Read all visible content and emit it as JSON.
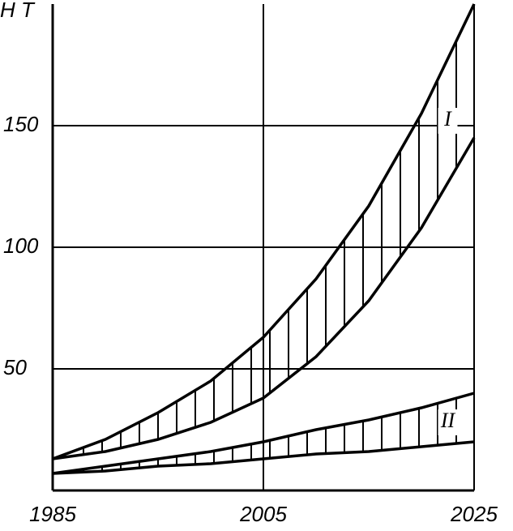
{
  "chart_data": {
    "type": "band",
    "y_label": "Н Т",
    "x": [
      1985,
      1990,
      1995,
      2000,
      2005,
      2010,
      2015,
      2020,
      2025
    ],
    "xlim": [
      1985,
      2025
    ],
    "xticks": [
      1985,
      2005,
      2025
    ],
    "ylim": [
      0,
      200
    ],
    "yticks": [
      50,
      100,
      150
    ],
    "grid": true,
    "series": [
      {
        "name": "I",
        "color": "#000000",
        "upper": [
          13,
          21,
          32,
          45,
          63,
          87,
          117,
          155,
          200
        ],
        "lower": [
          13,
          16,
          21,
          28,
          38,
          55,
          78,
          108,
          145
        ]
      },
      {
        "name": "II",
        "color": "#000000",
        "upper": [
          7,
          10,
          13,
          16,
          20,
          25,
          29,
          34,
          40
        ],
        "lower": [
          7,
          8,
          10,
          11,
          13,
          15,
          16,
          18,
          20
        ]
      }
    ]
  }
}
